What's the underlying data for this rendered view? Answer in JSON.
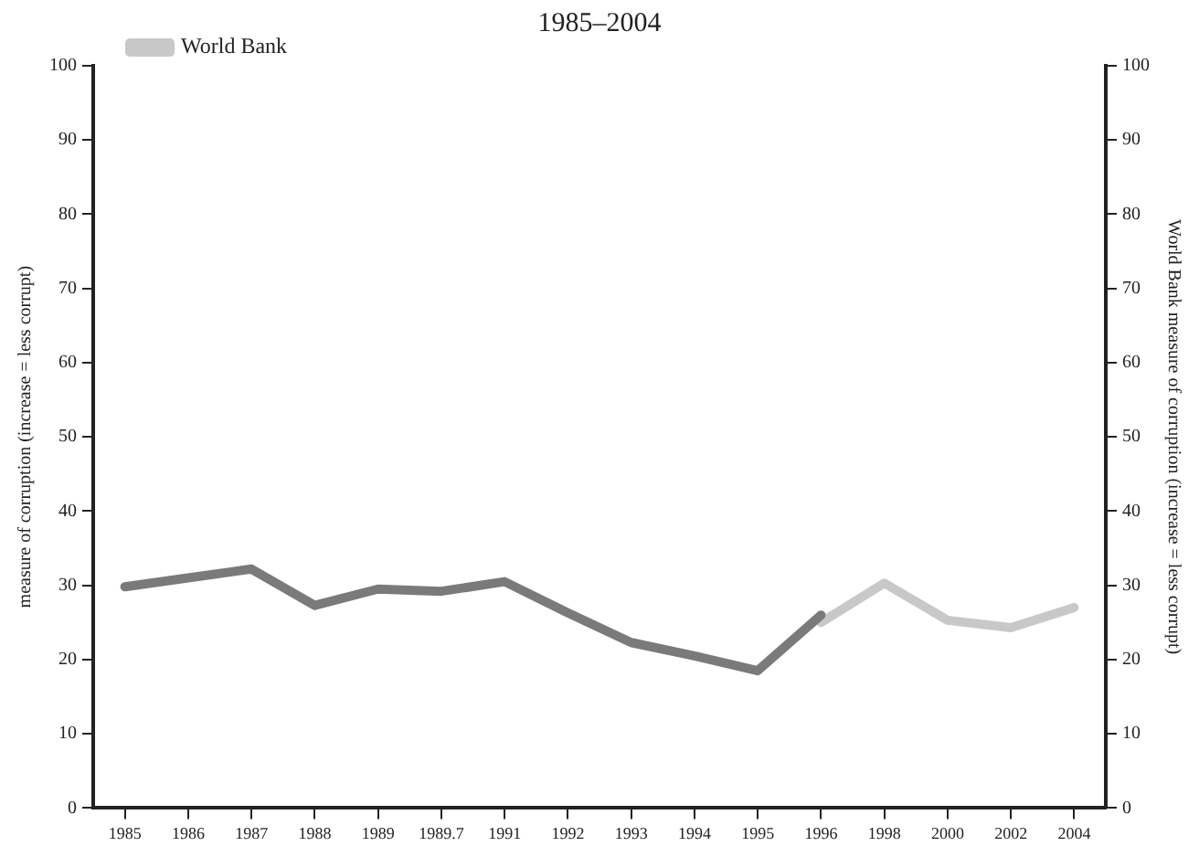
{
  "chart_data": {
    "type": "line",
    "title": "1985–2004",
    "ylabel": "measure of corruption (increase = less corrupt)",
    "y2label": "World Bank measure of corruption (increase = less corrupt)",
    "categories": [
      "1985",
      "1986",
      "1987",
      "1988",
      "1989",
      "1989.7",
      "1991",
      "1992",
      "1993",
      "1994",
      "1995",
      "1996",
      "1998",
      "2000",
      "2002",
      "2004"
    ],
    "series": [
      {
        "color": "#7a7a7a",
        "values": [
          29.8,
          31,
          32.2,
          27.3,
          29.5,
          29.2,
          30.5,
          26.3,
          22.3,
          20.5,
          18.5,
          26,
          null,
          null,
          null,
          null
        ]
      },
      {
        "name": "World Bank",
        "color": "#c8c8c8",
        "axis": "y2",
        "values": [
          null,
          null,
          null,
          null,
          null,
          null,
          null,
          null,
          null,
          null,
          null,
          25,
          30.3,
          25.3,
          24.3,
          27
        ]
      }
    ],
    "ylim": [
      0,
      100
    ],
    "yticks": [
      0,
      10,
      20,
      30,
      40,
      50,
      60,
      70,
      80,
      90,
      100
    ],
    "y2lim": [
      0,
      100
    ],
    "y2ticks": [
      0,
      10,
      20,
      30,
      40,
      50,
      60,
      70,
      80,
      90,
      100
    ],
    "grid": false,
    "legend": "top left",
    "marker": "none",
    "line_style": "solid"
  }
}
